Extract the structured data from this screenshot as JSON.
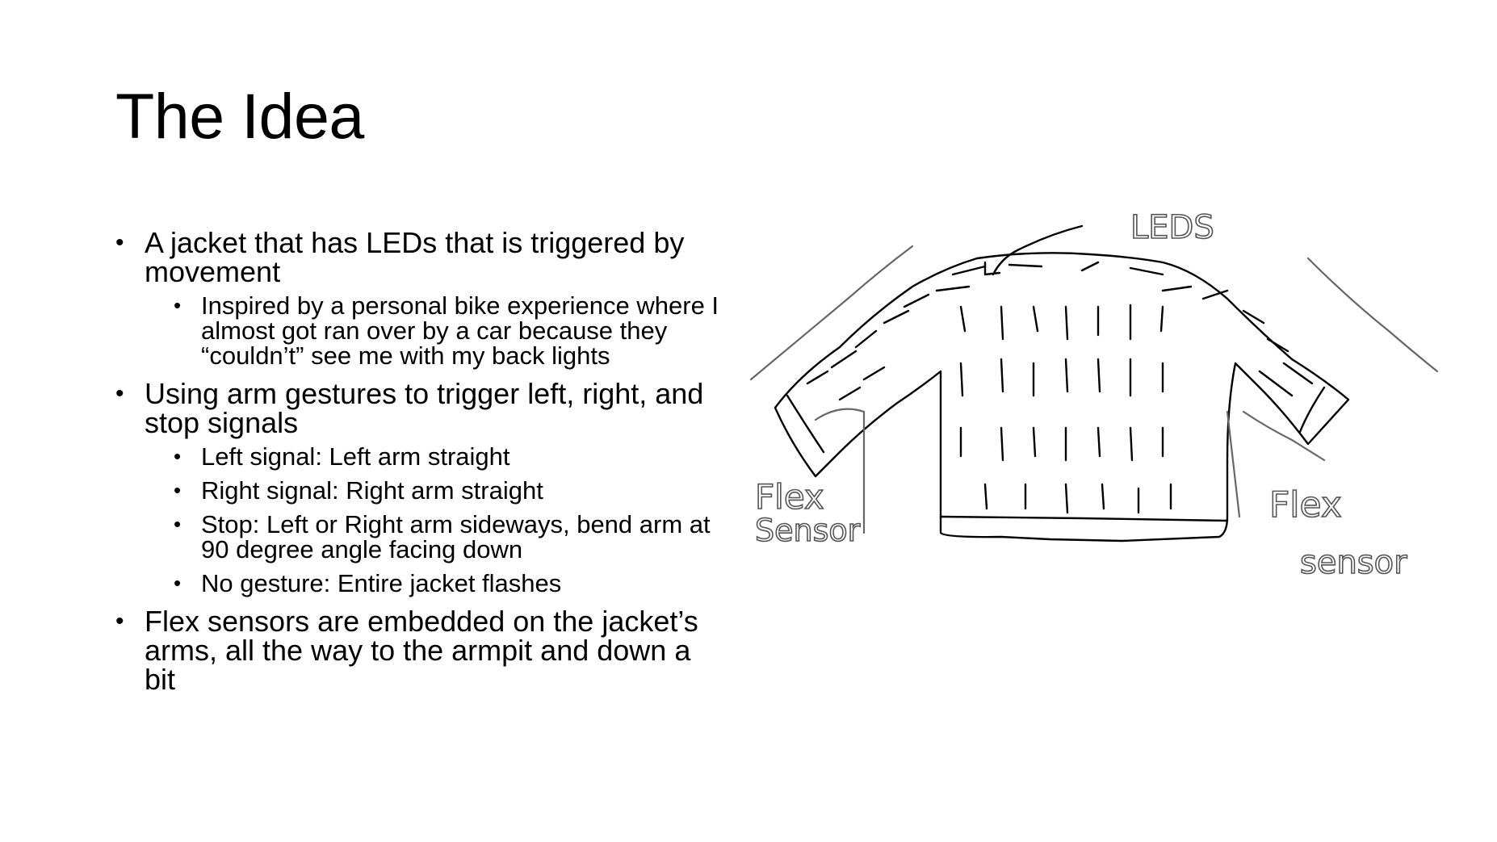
{
  "slide": {
    "title": "The Idea",
    "bullets": [
      {
        "text": "A jacket that has LEDs that is triggered by movement",
        "sub": [
          "Inspired by a personal bike experience where I almost got ran over by a car because they “couldn’t” see me with my back lights"
        ]
      },
      {
        "text": "Using arm gestures to trigger left, right, and stop signals",
        "sub": [
          "Left signal: Left arm straight",
          "Right signal: Right arm straight",
          "Stop: Left or Right arm sideways, bend arm at 90 degree angle facing down",
          "No gesture: Entire jacket flashes"
        ]
      },
      {
        "text": "Flex sensors are embedded on the jacket’s arms, all the way to the armpit and down a bit",
        "sub": []
      }
    ]
  },
  "sketch": {
    "leds_label": "LEDS",
    "left_sensor_label_1": "Flex",
    "left_sensor_label_2": "Sensor",
    "right_sensor_label_1": "Flex",
    "right_sensor_label_2": "sensor"
  }
}
